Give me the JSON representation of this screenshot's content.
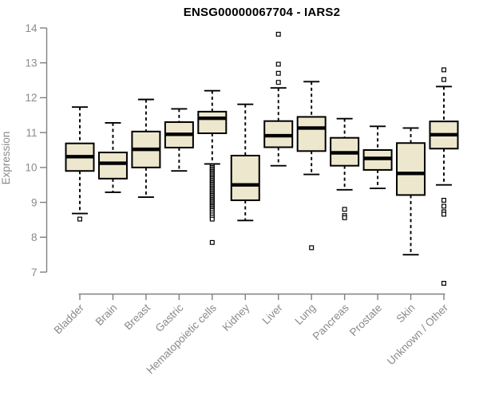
{
  "chart_data": {
    "type": "boxplot",
    "title": "ENSG00000067704 - IARS2",
    "ylabel": "Expression",
    "xlabel": "",
    "ylim": [
      7,
      14
    ],
    "yticks": [
      7,
      8,
      9,
      10,
      11,
      12,
      13,
      14
    ],
    "grid": false,
    "legend": "none",
    "categories": [
      "Bladder",
      "Brain",
      "Breast",
      "Gastric",
      "Hematopoietic cells",
      "Kidney",
      "Liver",
      "Lung",
      "Pancreas",
      "Prostate",
      "Skin",
      "Unknown / Other"
    ],
    "series": [
      {
        "label": "Bladder",
        "low": 8.68,
        "q1": 9.9,
        "median": 10.31,
        "q3": 10.69,
        "high": 11.73,
        "outliers": [
          8.52
        ]
      },
      {
        "label": "Brain",
        "low": 9.29,
        "q1": 9.68,
        "median": 10.12,
        "q3": 10.43,
        "high": 11.28,
        "outliers": []
      },
      {
        "label": "Breast",
        "low": 9.15,
        "q1": 10.0,
        "median": 10.52,
        "q3": 11.03,
        "high": 11.95,
        "outliers": []
      },
      {
        "label": "Gastric",
        "low": 9.9,
        "q1": 10.57,
        "median": 10.95,
        "q3": 11.3,
        "high": 11.68,
        "outliers": []
      },
      {
        "label": "Hematopoietic cells",
        "low": 10.1,
        "q1": 10.98,
        "median": 11.41,
        "q3": 11.6,
        "high": 12.2,
        "outliers": [
          10.04,
          10.0,
          9.96,
          9.92,
          9.88,
          9.84,
          9.8,
          9.76,
          9.72,
          9.68,
          9.64,
          9.6,
          9.56,
          9.52,
          9.48,
          9.44,
          9.4,
          9.36,
          9.32,
          9.28,
          9.24,
          9.2,
          9.16,
          9.12,
          9.08,
          9.04,
          9.0,
          8.96,
          8.92,
          8.88,
          8.84,
          8.8,
          8.76,
          8.7,
          8.64,
          8.58,
          8.52,
          7.85
        ]
      },
      {
        "label": "Kidney",
        "low": 8.48,
        "q1": 9.06,
        "median": 9.5,
        "q3": 10.34,
        "high": 11.81,
        "outliers": []
      },
      {
        "label": "Liver",
        "low": 10.05,
        "q1": 10.58,
        "median": 10.91,
        "q3": 11.33,
        "high": 12.28,
        "outliers": [
          13.82,
          12.96,
          12.7,
          12.44
        ]
      },
      {
        "label": "Lung",
        "low": 9.8,
        "q1": 10.47,
        "median": 11.13,
        "q3": 11.45,
        "high": 12.46,
        "outliers": [
          7.7
        ]
      },
      {
        "label": "Pancreas",
        "low": 9.36,
        "q1": 10.05,
        "median": 10.42,
        "q3": 10.85,
        "high": 11.4,
        "outliers": [
          8.8,
          8.62,
          8.56
        ]
      },
      {
        "label": "Prostate",
        "low": 9.4,
        "q1": 9.93,
        "median": 10.26,
        "q3": 10.5,
        "high": 11.18,
        "outliers": []
      },
      {
        "label": "Skin",
        "low": 7.5,
        "q1": 9.21,
        "median": 9.83,
        "q3": 10.7,
        "high": 11.13,
        "outliers": []
      },
      {
        "label": "Unknown / Other",
        "low": 9.5,
        "q1": 10.54,
        "median": 10.94,
        "q3": 11.32,
        "high": 12.32,
        "outliers": [
          12.8,
          12.52,
          9.06,
          8.89,
          8.73,
          8.66,
          6.68
        ]
      }
    ],
    "colors": {
      "box_fill": "#EDE8CD",
      "box_stroke": "#000000",
      "median": "#000000",
      "whisker": "#000000",
      "outlier_stroke": "#000000",
      "axis": "#808080",
      "tick_text": "#8a8a8a",
      "title_text": "#000000"
    }
  }
}
